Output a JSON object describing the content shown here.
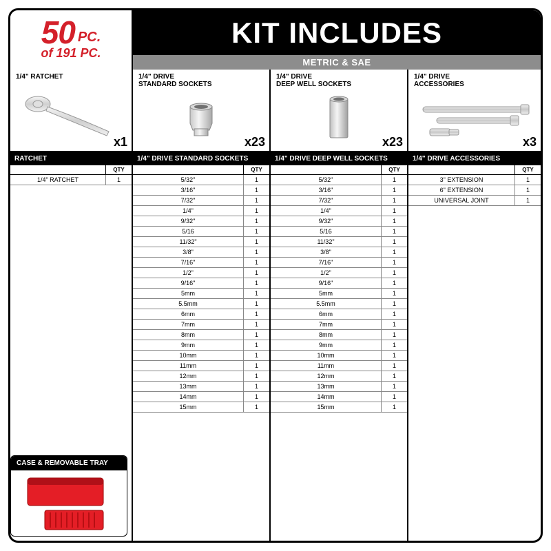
{
  "header": {
    "count_big": "50",
    "count_pc": "PC.",
    "of_line": "of 191 PC.",
    "title": "KIT INCLUDES",
    "subtitle": "METRIC & SAE"
  },
  "categories": [
    {
      "label": "1/4\" RATCHET",
      "qty": "x1"
    },
    {
      "label": "1/4\" DRIVE\nSTANDARD SOCKETS",
      "qty": "x23"
    },
    {
      "label": "1/4\" DRIVE\nDEEP WELL SOCKETS",
      "qty": "x23"
    },
    {
      "label": "1/4\" DRIVE\nACCESSORIES",
      "qty": "x3"
    }
  ],
  "table_headers": {
    "ratchet": "RATCHET",
    "standard": "1/4\" DRIVE STANDARD SOCKETS",
    "deep": "1/4\" DRIVE DEEP WELL SOCKETS",
    "acc": "1/4\" DRIVE ACCESSORIES",
    "qty_label": "QTY"
  },
  "ratchet_rows": [
    {
      "name": "1/4\" RATCHET",
      "qty": "1"
    }
  ],
  "socket_rows": [
    {
      "name": "5/32\"",
      "qty": "1"
    },
    {
      "name": "3/16\"",
      "qty": "1"
    },
    {
      "name": "7/32\"",
      "qty": "1"
    },
    {
      "name": "1/4\"",
      "qty": "1"
    },
    {
      "name": "9/32\"",
      "qty": "1"
    },
    {
      "name": "5/16",
      "qty": "1"
    },
    {
      "name": "11/32\"",
      "qty": "1"
    },
    {
      "name": "3/8\"",
      "qty": "1"
    },
    {
      "name": "7/16\"",
      "qty": "1"
    },
    {
      "name": "1/2\"",
      "qty": "1"
    },
    {
      "name": "9/16\"",
      "qty": "1"
    },
    {
      "name": "5mm",
      "qty": "1"
    },
    {
      "name": "5.5mm",
      "qty": "1"
    },
    {
      "name": "6mm",
      "qty": "1"
    },
    {
      "name": "7mm",
      "qty": "1"
    },
    {
      "name": "8mm",
      "qty": "1"
    },
    {
      "name": "9mm",
      "qty": "1"
    },
    {
      "name": "10mm",
      "qty": "1"
    },
    {
      "name": "11mm",
      "qty": "1"
    },
    {
      "name": "12mm",
      "qty": "1"
    },
    {
      "name": "13mm",
      "qty": "1"
    },
    {
      "name": "14mm",
      "qty": "1"
    },
    {
      "name": "15mm",
      "qty": "1"
    }
  ],
  "acc_rows": [
    {
      "name": "3\" EXTENSION",
      "qty": "1"
    },
    {
      "name": "6\" EXTENSION",
      "qty": "1"
    },
    {
      "name": "UNIVERSAL JOINT",
      "qty": "1"
    }
  ],
  "case_label": "CASE & REMOVABLE TRAY",
  "colors": {
    "brand_red": "#d4202a",
    "black": "#000000",
    "grey": "#8d8d8d",
    "chrome1": "#f0f0f0",
    "chrome2": "#b8b8b8",
    "case_red": "#e41e26"
  }
}
